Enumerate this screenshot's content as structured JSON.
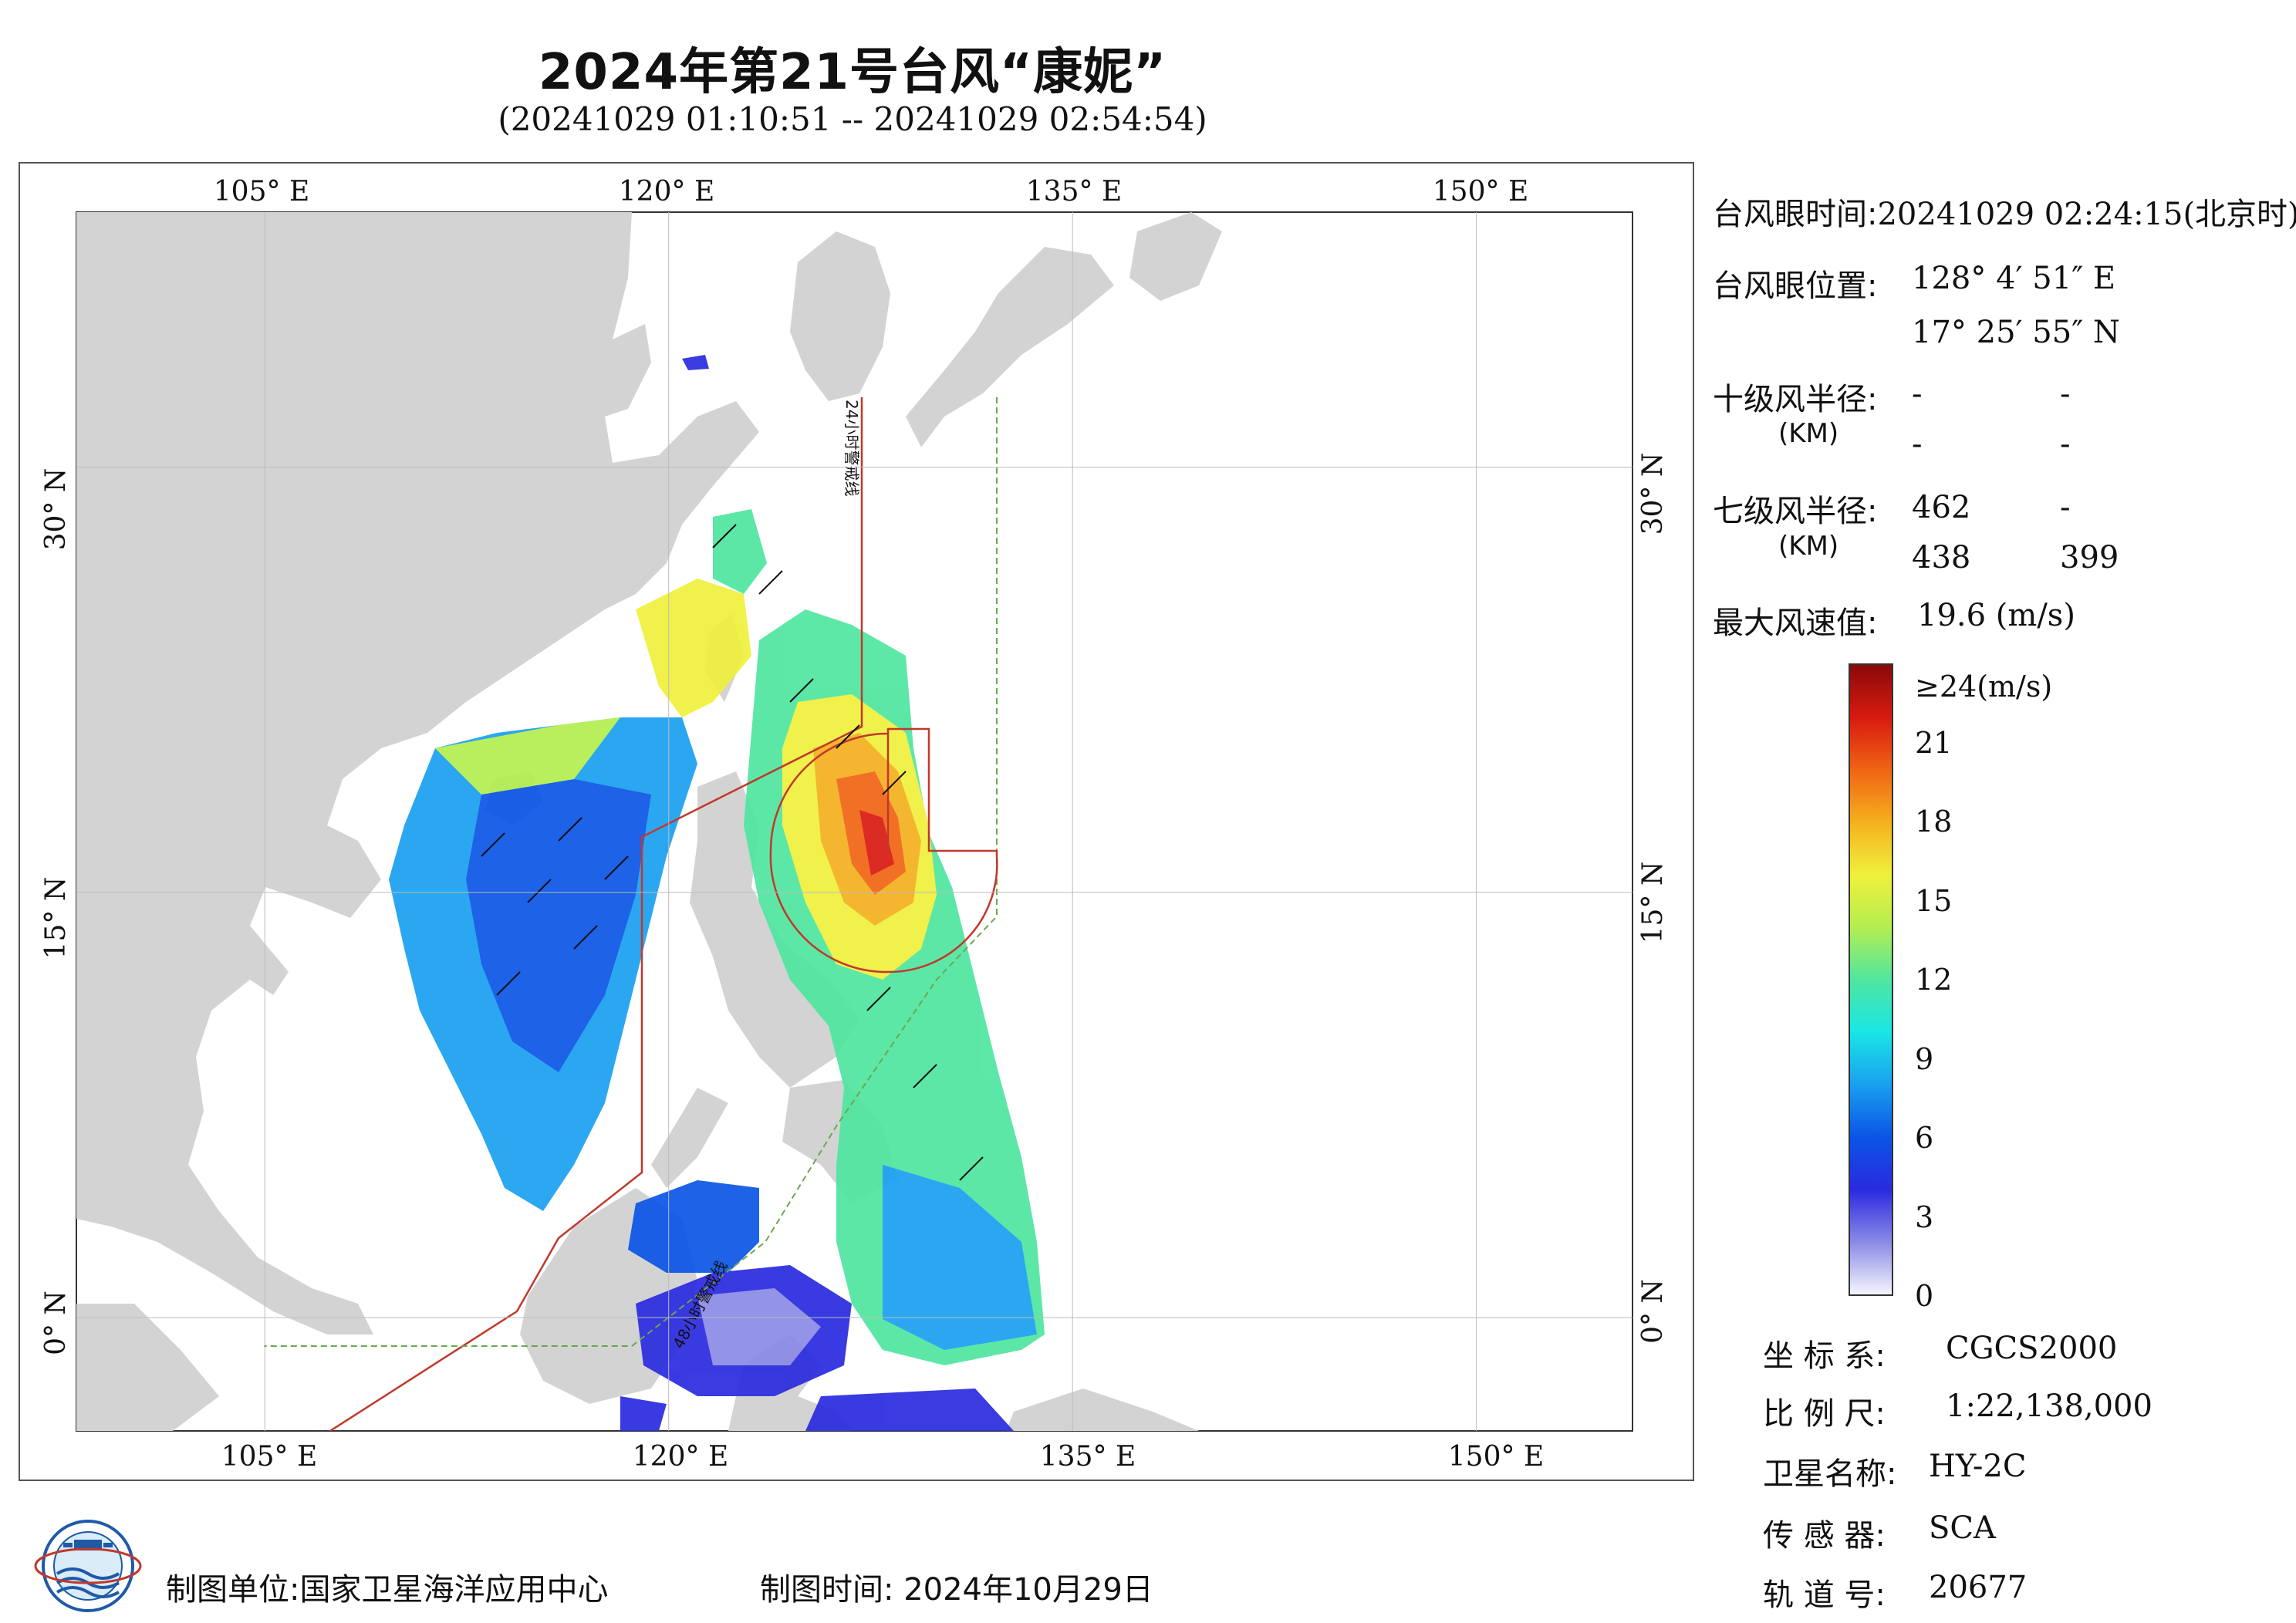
{
  "header": {
    "title": "2024年第21号台风“康妮”",
    "subtitle": "(20241029 01:10:51 -- 20241029 02:54:54)"
  },
  "map": {
    "top_ticks": [
      "105° E",
      "120° E",
      "135° E",
      "150° E"
    ],
    "bottom_ticks": [
      "105° E",
      "120° E",
      "135° E",
      "150° E"
    ],
    "left_ticks": [
      "30° N",
      "15° N",
      "0° N"
    ],
    "right_ticks": [
      "30° N",
      "15° N",
      "0° N"
    ],
    "line_24h_label": "24小时警戒线",
    "line_48h_label": "48小时警戒线",
    "colors": {
      "land": "#d3d3d3",
      "ocean": "#ffffff",
      "warning_24h": "#c0392b",
      "warning_48h": "#6aa84f"
    }
  },
  "info": {
    "eye_time_label": "台风眼时间:",
    "eye_time_value": "20241029 02:24:15(北京时)",
    "eye_pos_label": "台风眼位置:",
    "eye_lon": "128° 4′ 51″ E",
    "eye_lat": "17° 25′ 55″ N",
    "r10_label": "十级风半径:",
    "r10_unit": "(KM)",
    "r10_values": [
      "-",
      "-",
      "-",
      "-"
    ],
    "r7_label": "七级风半径:",
    "r7_unit": "(KM)",
    "r7_values": [
      "462",
      "-",
      "438",
      "399"
    ],
    "max_wind_label": "最大风速值:",
    "max_wind_value": "19.6  (m/s)"
  },
  "colorbar": {
    "top_label": "≥24(m/s)",
    "ticks": [
      "21",
      "18",
      "15",
      "12",
      "9",
      "6",
      "3",
      "0"
    ],
    "colors": [
      "#f5f5ff",
      "#8a8ae6",
      "#2a2ae0",
      "#0a55e6",
      "#1aa0f0",
      "#19e6e6",
      "#50e6a0",
      "#b4ee50",
      "#f0f03c",
      "#f5b01e",
      "#f06414",
      "#d81a10",
      "#8a0a0a"
    ]
  },
  "meta": {
    "crs_label": "坐 标 系:",
    "crs_value": "CGCS2000",
    "scale_label": "比 例 尺:",
    "scale_value": "1:22,138,000",
    "satellite_label": "卫星名称:",
    "satellite_value": "HY-2C",
    "sensor_label": "传 感 器:",
    "sensor_value": "SCA",
    "orbit_label": "轨 道 号:",
    "orbit_value": "20677"
  },
  "footer": {
    "producer": "制图单位:国家卫星海洋应用中心",
    "date": "制图时间:  2024年10月29日"
  }
}
